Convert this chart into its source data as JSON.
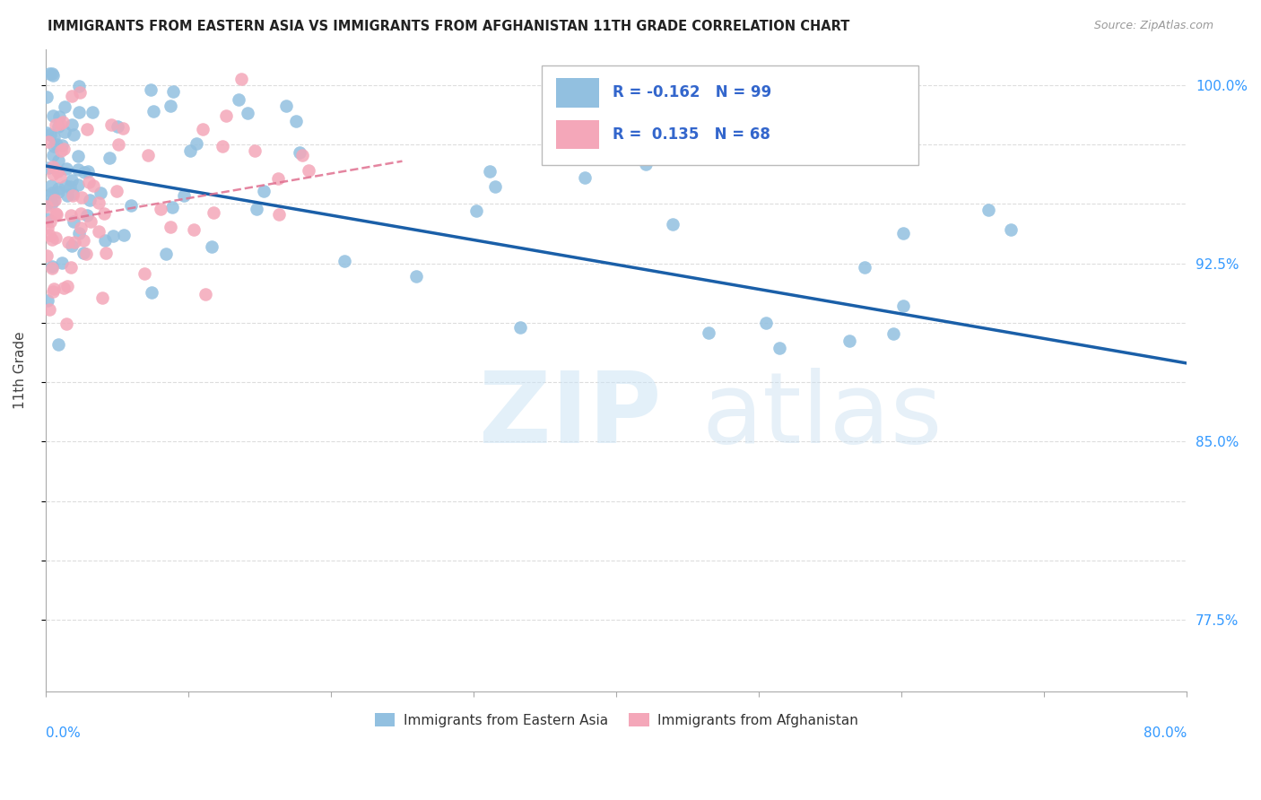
{
  "title": "IMMIGRANTS FROM EASTERN ASIA VS IMMIGRANTS FROM AFGHANISTAN 11TH GRADE CORRELATION CHART",
  "source": "Source: ZipAtlas.com",
  "ylabel": "11th Grade",
  "xlim": [
    0.0,
    0.8
  ],
  "ylim": [
    0.745,
    1.015
  ],
  "ytick_vals": [
    0.775,
    0.8,
    0.825,
    0.85,
    0.875,
    0.9,
    0.925,
    0.95,
    0.975,
    1.0
  ],
  "ytick_labels": [
    "77.5%",
    "",
    "",
    "85.0%",
    "",
    "",
    "92.5%",
    "",
    "",
    "100.0%"
  ],
  "blue_color": "#92C0E0",
  "pink_color": "#F4A7B9",
  "blue_line_color": "#1A5FA8",
  "pink_line_color": "#E07090",
  "background_color": "#ffffff",
  "grid_color": "#dddddd",
  "legend_blue_r": "-0.162",
  "legend_blue_n": "99",
  "legend_pink_r": "0.135",
  "legend_pink_n": "68",
  "blue_trend_x": [
    0.0,
    0.8
  ],
  "blue_trend_y": [
    0.966,
    0.883
  ],
  "pink_trend_x": [
    0.0,
    0.25
  ],
  "pink_trend_y": [
    0.942,
    0.968
  ]
}
